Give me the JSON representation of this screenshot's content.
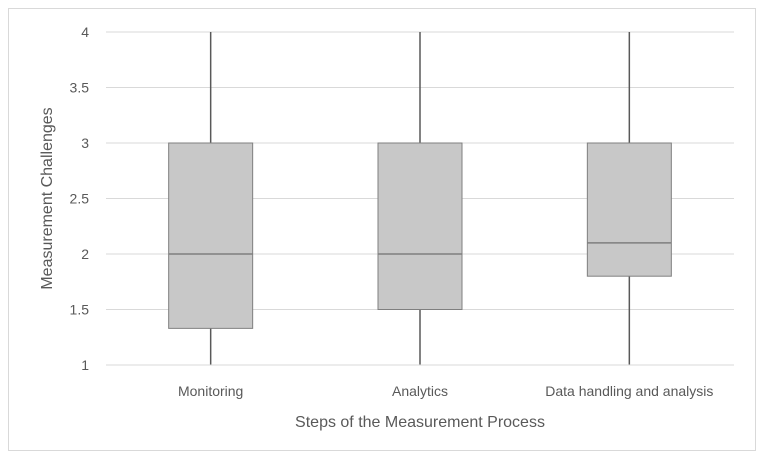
{
  "chart_data": {
    "type": "boxplot",
    "title": "",
    "xlabel": "Steps of the Measurement Process",
    "ylabel": "Measurement Challenges",
    "ylim": [
      1,
      4
    ],
    "yticks": [
      "1",
      "1.5",
      "2",
      "2.5",
      "3",
      "3.5",
      "4"
    ],
    "categories": [
      "Monitoring",
      "Analytics",
      "Data handling and analysis"
    ],
    "boxes": [
      {
        "category": "Monitoring",
        "min": 1,
        "q1": 1.33,
        "median": 2,
        "q3": 3,
        "max": 4
      },
      {
        "category": "Analytics",
        "min": 1,
        "q1": 1.5,
        "median": 2,
        "q3": 3,
        "max": 4
      },
      {
        "category": "Data handling and analysis",
        "min": 1,
        "q1": 1.8,
        "median": 2.1,
        "q3": 3,
        "max": 4
      }
    ],
    "grid": true,
    "legend": "none",
    "colors": {
      "box_fill": "#c8c8c8",
      "box_stroke": "#7f7f7f",
      "whisker": "#595959",
      "grid": "#d9d9d9"
    }
  }
}
